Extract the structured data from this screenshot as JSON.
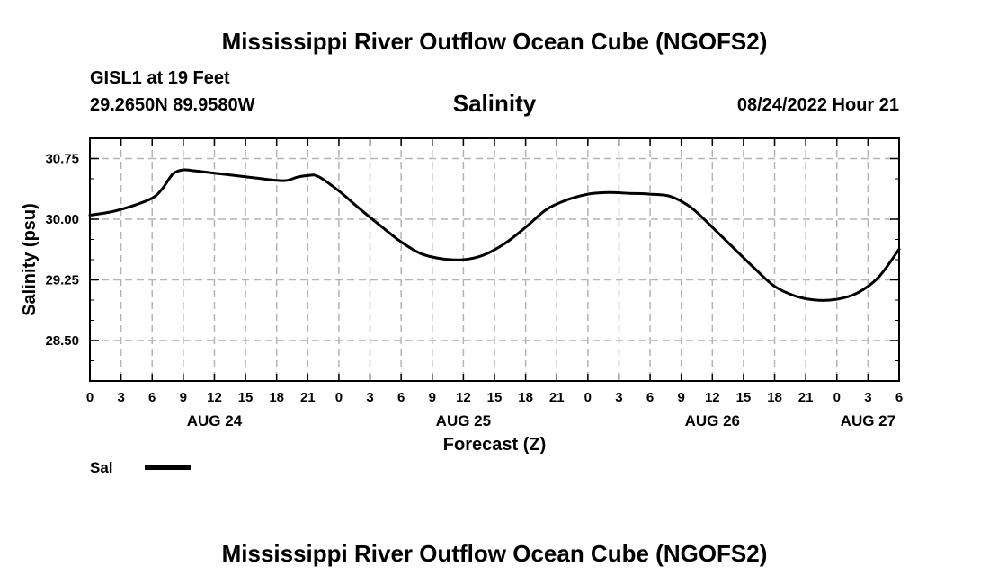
{
  "chart_data": {
    "type": "line",
    "title": "Mississippi River Outflow Ocean Cube (NGOFS2)",
    "station": "GISL1 at 19 Feet",
    "location": "29.2650N  89.9580W",
    "subtitle": "Salinity",
    "timestamp": "08/24/2022 Hour 21",
    "xlabel": "Forecast (Z)",
    "ylabel": "Salinity (psu)",
    "ylim": [
      28.0,
      31.0
    ],
    "xlim": [
      0,
      78
    ],
    "grid": true,
    "y_ticks": [
      {
        "value": 28.5,
        "label": "28.50"
      },
      {
        "value": 29.25,
        "label": "29.25"
      },
      {
        "value": 30.0,
        "label": "30.00"
      },
      {
        "value": 30.75,
        "label": "30.75"
      }
    ],
    "x_ticks": [
      "0",
      "3",
      "6",
      "9",
      "12",
      "15",
      "18",
      "21",
      "0",
      "3",
      "6",
      "9",
      "12",
      "15",
      "18",
      "21",
      "0",
      "3",
      "6",
      "9",
      "12",
      "15",
      "18",
      "21",
      "0",
      "3",
      "6"
    ],
    "date_labels": [
      {
        "hour": 12,
        "label": "AUG 24"
      },
      {
        "hour": 36,
        "label": "AUG 25"
      },
      {
        "hour": 60,
        "label": "AUG 26"
      },
      {
        "hour": 75,
        "label": "AUG 27"
      }
    ],
    "legend": {
      "position": "bottom-left",
      "label": "Sal"
    },
    "series": [
      {
        "name": "Sal",
        "x": [
          0,
          2,
          4,
          6,
          7,
          8,
          9,
          10,
          12,
          14,
          16,
          18,
          19,
          20,
          21,
          22,
          24,
          26,
          28,
          30,
          32,
          34,
          36,
          38,
          40,
          42,
          44,
          46,
          48,
          50,
          52,
          54,
          56,
          58,
          60,
          62,
          64,
          66,
          68,
          70,
          72,
          74,
          76,
          78
        ],
        "y": [
          30.05,
          30.09,
          30.16,
          30.26,
          30.38,
          30.56,
          30.61,
          30.6,
          30.57,
          30.54,
          30.51,
          30.48,
          30.48,
          30.52,
          30.54,
          30.53,
          30.35,
          30.13,
          29.92,
          29.72,
          29.57,
          29.51,
          29.5,
          29.56,
          29.7,
          29.9,
          30.12,
          30.24,
          30.31,
          30.33,
          30.32,
          30.31,
          30.28,
          30.14,
          29.9,
          29.65,
          29.4,
          29.17,
          29.05,
          29.0,
          29.01,
          29.09,
          29.28,
          29.63
        ]
      }
    ]
  },
  "footer_title": "Mississippi River Outflow Ocean Cube (NGOFS2)"
}
